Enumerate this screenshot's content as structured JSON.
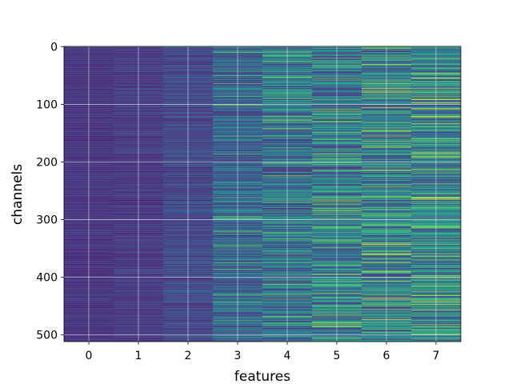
{
  "chart_data": {
    "type": "heatmap",
    "title": "",
    "xlabel": "features",
    "ylabel": "channels",
    "x_categories": [
      "0",
      "1",
      "2",
      "3",
      "4",
      "5",
      "6",
      "7"
    ],
    "x_tick_labels": [
      "0",
      "1",
      "2",
      "3",
      "4",
      "5",
      "6",
      "7"
    ],
    "y_range": [
      0,
      511
    ],
    "y_ticks": [
      0,
      100,
      200,
      300,
      400,
      500
    ],
    "y_tick_labels": [
      "0",
      "100",
      "200",
      "300",
      "400",
      "500"
    ],
    "y_inverted": true,
    "grid": true,
    "colormap": "viridis",
    "rows": 512,
    "columns": 8,
    "column_intensity": [
      0.18,
      0.2,
      0.26,
      0.38,
      0.44,
      0.48,
      0.5,
      0.52
    ],
    "column_variation": [
      0.05,
      0.07,
      0.11,
      0.22,
      0.28,
      0.3,
      0.3,
      0.3
    ],
    "highlights": [
      {
        "feature": 4,
        "channel": 142,
        "value": 0.9
      },
      {
        "feature": 4,
        "channel": 270,
        "value": 0.8
      },
      {
        "feature": 4,
        "channel": 375,
        "value": 0.75
      },
      {
        "feature": 5,
        "channel": 58,
        "value": 0.8
      },
      {
        "feature": 5,
        "channel": 262,
        "value": 0.85
      },
      {
        "feature": 5,
        "channel": 265,
        "value": 0.8
      },
      {
        "feature": 5,
        "channel": 280,
        "value": 0.8
      },
      {
        "feature": 5,
        "channel": 408,
        "value": 0.75
      },
      {
        "feature": 6,
        "channel": 73,
        "value": 0.95
      },
      {
        "feature": 6,
        "channel": 106,
        "value": 1.0
      },
      {
        "feature": 6,
        "channel": 186,
        "value": 0.8
      },
      {
        "feature": 6,
        "channel": 343,
        "value": 1.0
      },
      {
        "feature": 6,
        "channel": 436,
        "value": 1.0
      },
      {
        "feature": 6,
        "channel": 473,
        "value": 0.95
      },
      {
        "feature": 7,
        "channel": 92,
        "value": 0.95
      },
      {
        "feature": 7,
        "channel": 193,
        "value": 0.8
      },
      {
        "feature": 7,
        "channel": 255,
        "value": 0.8
      },
      {
        "feature": 7,
        "channel": 475,
        "value": 0.8
      },
      {
        "feature": 7,
        "channel": 490,
        "value": 0.75
      }
    ]
  }
}
